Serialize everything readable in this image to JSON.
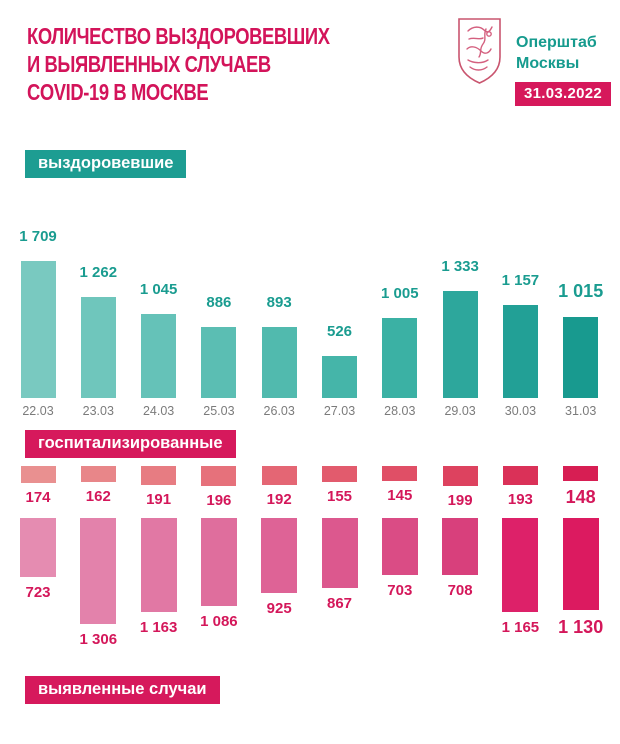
{
  "header": {
    "title_lines": [
      "КОЛИЧЕСТВО ВЫЗДОРОВЕВШИХ",
      "И ВЫЯВЛЕННЫХ СЛУЧАЕВ",
      "COVID-19 В МОСКВЕ"
    ],
    "org_name_line1": "Оперштаб",
    "org_name_line2": "Москвы",
    "emblem": "moscow-coat-of-arms",
    "date_badge": "31.03.2022"
  },
  "sections": {
    "recovered_label": "выздоровевшие",
    "hospitalized_label": "госпитализированные",
    "detected_label": "выявленные случаи"
  },
  "colors": {
    "accent_pink": "#D6185B",
    "accent_teal": "#1D9D92",
    "date_text": "#7B7B7B",
    "background": "#FFFFFF"
  },
  "chart_data": {
    "type": "bar",
    "title": "Количество выздоровевших и выявленных случаев COVID-19 в Москве",
    "categories": [
      "22.03",
      "23.03",
      "24.03",
      "25.03",
      "26.03",
      "27.03",
      "28.03",
      "29.03",
      "30.03",
      "31.03"
    ],
    "grid": false,
    "legend_position": "section-labels",
    "series": [
      {
        "name": "выздоровевшие",
        "direction": "up",
        "values": [
          1709,
          1262,
          1045,
          886,
          893,
          526,
          1005,
          1333,
          1157,
          1015
        ],
        "labels": [
          "1 709",
          "1 262",
          "1 045",
          "886",
          "893",
          "526",
          "1 005",
          "1 333",
          "1 157",
          "1 015"
        ],
        "bar_colors": [
          "#79C9C0",
          "#6FC6BC",
          "#65C2B8",
          "#5BBEB3",
          "#51BAAE",
          "#45B5A9",
          "#3BB1A4",
          "#2DA79C",
          "#22A096",
          "#189A8F"
        ]
      },
      {
        "name": "госпитализированные",
        "direction": "down",
        "values": [
          174,
          162,
          191,
          196,
          192,
          155,
          145,
          199,
          193,
          148
        ],
        "labels": [
          "174",
          "162",
          "191",
          "196",
          "192",
          "155",
          "145",
          "199",
          "193",
          "148"
        ],
        "bar_colors": [
          "#E99090",
          "#E88689",
          "#E77C82",
          "#E6717B",
          "#E46674",
          "#E25B6D",
          "#E04F66",
          "#DD425F",
          "#DA3158",
          "#D71E53"
        ]
      },
      {
        "name": "выявленные случаи",
        "direction": "down",
        "values": [
          723,
          1306,
          1163,
          1086,
          925,
          867,
          703,
          708,
          1165,
          1130
        ],
        "labels": [
          "723",
          "1 306",
          "1 163",
          "1 086",
          "925",
          "867",
          "703",
          "708",
          "1 165",
          "1 130"
        ],
        "bar_colors": [
          "#E58CB1",
          "#E382AB",
          "#E178A4",
          "#DF6E9D",
          "#DE6396",
          "#DC588E",
          "#DA4C85",
          "#D8407C",
          "#DD2169",
          "#DC1A60"
        ]
      }
    ]
  }
}
